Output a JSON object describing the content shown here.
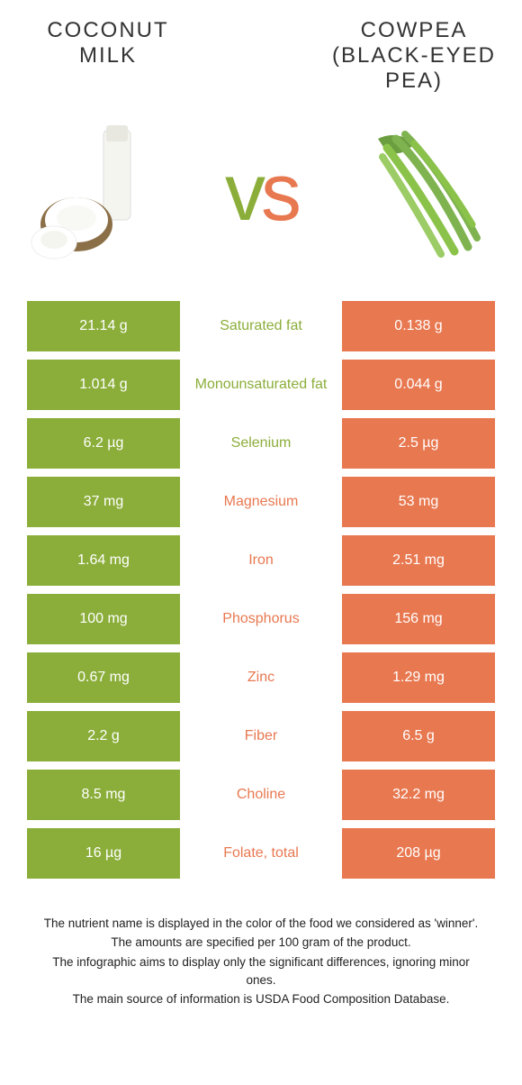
{
  "colors": {
    "green": "#8BAE3A",
    "orange": "#E87850",
    "text_dark": "#333333"
  },
  "left_food": {
    "title_line1": "Coconut",
    "title_line2": "Milk"
  },
  "right_food": {
    "title_line1": "Cowpea",
    "title_line2": "(Black-eyed",
    "title_line3": "Pea)"
  },
  "vs": {
    "v": "v",
    "s": "s"
  },
  "rows": [
    {
      "left": "21.14 g",
      "label": "Saturated fat",
      "right": "0.138 g",
      "winner": "left"
    },
    {
      "left": "1.014 g",
      "label": "Monounsaturated fat",
      "right": "0.044 g",
      "winner": "left"
    },
    {
      "left": "6.2 µg",
      "label": "Selenium",
      "right": "2.5 µg",
      "winner": "left"
    },
    {
      "left": "37 mg",
      "label": "Magnesium",
      "right": "53 mg",
      "winner": "right"
    },
    {
      "left": "1.64 mg",
      "label": "Iron",
      "right": "2.51 mg",
      "winner": "right"
    },
    {
      "left": "100 mg",
      "label": "Phosphorus",
      "right": "156 mg",
      "winner": "right"
    },
    {
      "left": "0.67 mg",
      "label": "Zinc",
      "right": "1.29 mg",
      "winner": "right"
    },
    {
      "left": "2.2 g",
      "label": "Fiber",
      "right": "6.5 g",
      "winner": "right"
    },
    {
      "left": "8.5 mg",
      "label": "Choline",
      "right": "32.2 mg",
      "winner": "right"
    },
    {
      "left": "16 µg",
      "label": "Folate, total",
      "right": "208 µg",
      "winner": "right"
    }
  ],
  "footer": {
    "line1": "The nutrient name is displayed in the color of the food we considered as 'winner'.",
    "line2": "The amounts are specified per 100 gram of the product.",
    "line3": "The infographic aims to display only the significant differences, ignoring minor ones.",
    "line4": "The main source of information is USDA Food Composition Database."
  }
}
